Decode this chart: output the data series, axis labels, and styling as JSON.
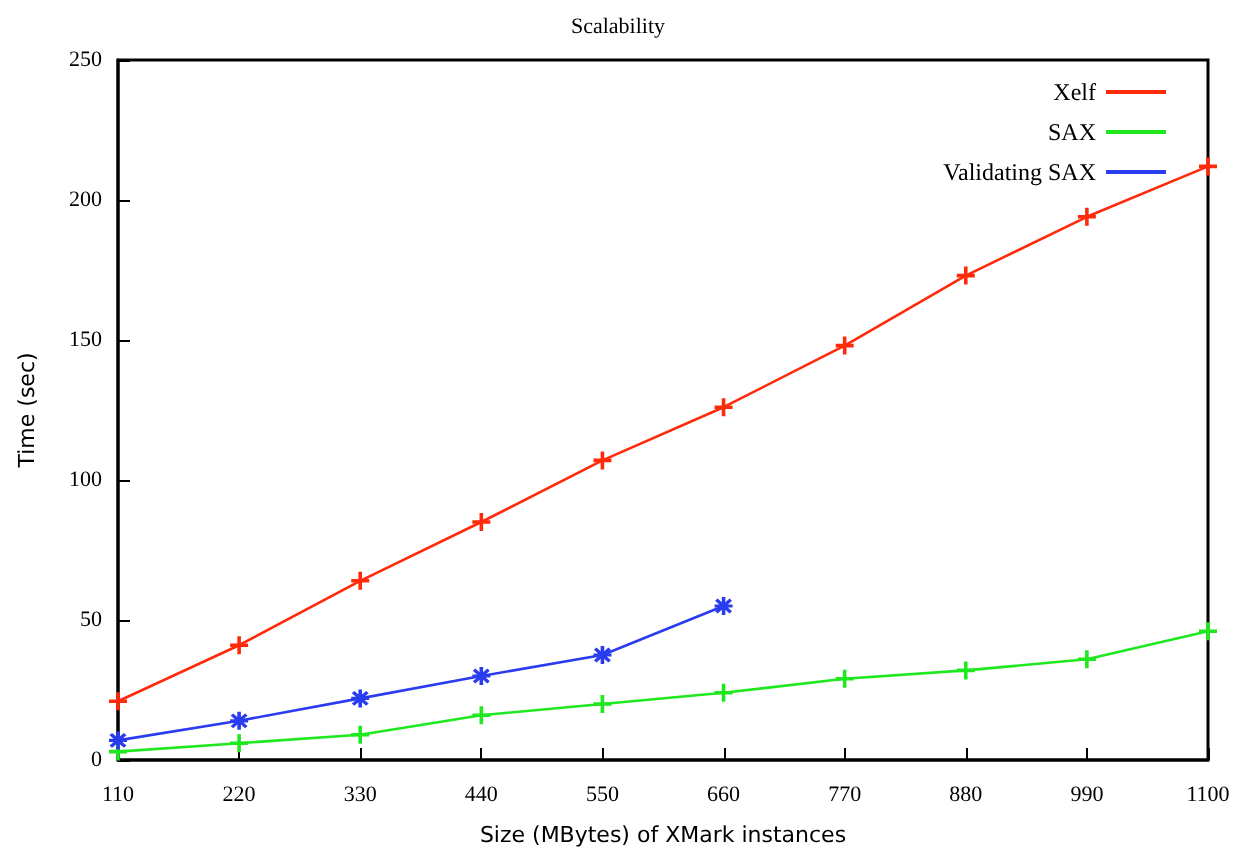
{
  "chart_data": {
    "type": "line",
    "title": "Scalability",
    "xlabel": "Size (MBytes) of XMark instances",
    "ylabel": "Time (sec)",
    "x": [
      110,
      220,
      330,
      440,
      550,
      660,
      770,
      880,
      990,
      1100
    ],
    "xlim": [
      110,
      1100
    ],
    "xticks": [
      110,
      220,
      330,
      440,
      550,
      660,
      770,
      880,
      990,
      1100
    ],
    "ylim": [
      0,
      250
    ],
    "yticks": [
      0,
      50,
      100,
      150,
      200,
      250
    ],
    "grid": false,
    "legend": "top right",
    "line_style": "solid",
    "series": [
      {
        "name": "Xelf",
        "color": "#ff2a0a",
        "marker": "cross",
        "values": [
          21,
          41,
          64,
          85,
          107,
          126,
          148,
          173,
          194,
          212
        ]
      },
      {
        "name": "SAX",
        "color": "#1ee81e",
        "marker": "cross",
        "values": [
          3,
          6,
          9,
          16,
          20,
          24,
          29,
          32,
          36,
          46
        ]
      },
      {
        "name": "Validating SAX",
        "color": "#2a3cf0",
        "marker": "star",
        "values": [
          7,
          14,
          22,
          30,
          37.5,
          55,
          null,
          null,
          null,
          null
        ]
      }
    ]
  }
}
